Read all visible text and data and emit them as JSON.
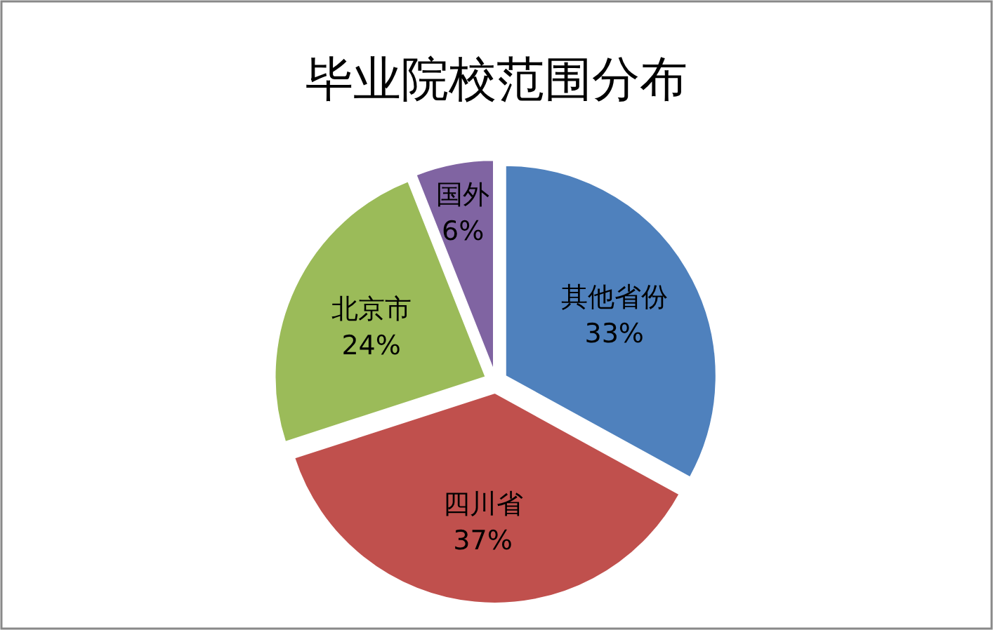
{
  "chart_data": {
    "type": "pie",
    "title": "毕业院校范围分布",
    "categories": [
      "其他省份",
      "四川省",
      "北京市",
      "国外"
    ],
    "values": [
      33,
      37,
      24,
      6
    ],
    "colors": [
      "#4f81bd",
      "#c0504d",
      "#9bbb59",
      "#8064a2"
    ],
    "value_labels": [
      "33%",
      "37%",
      "24%",
      "6%"
    ]
  }
}
